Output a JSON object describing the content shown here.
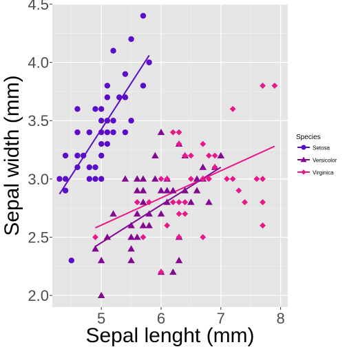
{
  "chart_data": {
    "type": "scatter",
    "xlabel": "Sepal lenght (mm)",
    "ylabel": "Sepal width (mm)",
    "xlim": [
      4.18,
      8.12
    ],
    "ylim": [
      1.9,
      4.5
    ],
    "xticks": [
      "5",
      "6",
      "7",
      "8"
    ],
    "xtick_values": [
      5,
      6,
      7,
      8
    ],
    "yticks": [
      "2.0",
      "2.5",
      "3.0",
      "3.5",
      "4.0",
      "4.5"
    ],
    "ytick_values": [
      2.0,
      2.5,
      3.0,
      3.5,
      4.0,
      4.5
    ],
    "grid": true,
    "legend": {
      "title": "Species",
      "placement": "right"
    },
    "series": [
      {
        "name": "Setosa",
        "color": "#5b0cc8",
        "marker": "circle",
        "fit": [
          [
            4.3,
            2.87
          ],
          [
            5.8,
            4.06
          ]
        ],
        "points": [
          [
            4.3,
            3.0
          ],
          [
            4.4,
            2.9
          ],
          [
            4.4,
            3.0
          ],
          [
            4.4,
            3.2
          ],
          [
            4.5,
            2.3
          ],
          [
            4.6,
            3.1
          ],
          [
            4.6,
            3.2
          ],
          [
            4.6,
            3.4
          ],
          [
            4.6,
            3.6
          ],
          [
            4.7,
            3.2
          ],
          [
            4.8,
            3.0
          ],
          [
            4.8,
            3.1
          ],
          [
            4.8,
            3.4
          ],
          [
            4.9,
            3.0
          ],
          [
            4.9,
            3.1
          ],
          [
            4.9,
            3.6
          ],
          [
            5.0,
            3.0
          ],
          [
            5.0,
            3.2
          ],
          [
            5.0,
            3.3
          ],
          [
            5.0,
            3.4
          ],
          [
            5.0,
            3.5
          ],
          [
            5.0,
            3.6
          ],
          [
            5.1,
            3.3
          ],
          [
            5.1,
            3.4
          ],
          [
            5.1,
            3.5
          ],
          [
            5.1,
            3.7
          ],
          [
            5.1,
            3.8
          ],
          [
            5.2,
            3.4
          ],
          [
            5.2,
            3.5
          ],
          [
            5.2,
            4.1
          ],
          [
            5.3,
            3.7
          ],
          [
            5.4,
            3.4
          ],
          [
            5.4,
            3.7
          ],
          [
            5.4,
            3.9
          ],
          [
            5.5,
            3.5
          ],
          [
            5.5,
            4.2
          ],
          [
            5.7,
            3.8
          ],
          [
            5.7,
            4.4
          ],
          [
            5.8,
            4.0
          ]
        ]
      },
      {
        "name": "Versicolor",
        "color": "#830891",
        "marker": "triangle",
        "fit": [
          [
            4.9,
            2.42
          ],
          [
            7.0,
            3.1
          ]
        ],
        "points": [
          [
            4.9,
            2.4
          ],
          [
            5.0,
            2.0
          ],
          [
            5.0,
            2.3
          ],
          [
            5.1,
            2.5
          ],
          [
            5.2,
            2.7
          ],
          [
            5.4,
            3.0
          ],
          [
            5.5,
            2.3
          ],
          [
            5.5,
            2.4
          ],
          [
            5.5,
            2.5
          ],
          [
            5.5,
            2.6
          ],
          [
            5.6,
            2.5
          ],
          [
            5.6,
            2.7
          ],
          [
            5.6,
            2.9
          ],
          [
            5.6,
            3.0
          ],
          [
            5.7,
            2.6
          ],
          [
            5.7,
            2.8
          ],
          [
            5.7,
            2.9
          ],
          [
            5.7,
            3.0
          ],
          [
            5.8,
            2.6
          ],
          [
            5.8,
            2.7
          ],
          [
            5.9,
            3.0
          ],
          [
            5.9,
            3.2
          ],
          [
            6.0,
            2.2
          ],
          [
            6.0,
            2.7
          ],
          [
            6.0,
            2.9
          ],
          [
            6.0,
            3.4
          ],
          [
            6.1,
            2.8
          ],
          [
            6.1,
            2.9
          ],
          [
            6.1,
            3.0
          ],
          [
            6.2,
            2.2
          ],
          [
            6.2,
            2.9
          ],
          [
            6.3,
            2.3
          ],
          [
            6.3,
            2.5
          ],
          [
            6.3,
            3.3
          ],
          [
            6.4,
            2.9
          ],
          [
            6.4,
            3.2
          ],
          [
            6.5,
            2.8
          ],
          [
            6.6,
            2.9
          ],
          [
            6.6,
            3.0
          ],
          [
            6.7,
            3.0
          ],
          [
            6.7,
            3.1
          ],
          [
            6.8,
            2.8
          ],
          [
            6.9,
            3.1
          ],
          [
            7.0,
            3.2
          ]
        ]
      },
      {
        "name": "Virginica",
        "color": "#e8178a",
        "marker": "diamond",
        "fit": [
          [
            4.9,
            2.58
          ],
          [
            7.9,
            3.28
          ]
        ],
        "points": [
          [
            4.9,
            2.5
          ],
          [
            5.6,
            2.8
          ],
          [
            5.7,
            2.5
          ],
          [
            5.8,
            2.8
          ],
          [
            6.0,
            2.2
          ],
          [
            6.0,
            3.0
          ],
          [
            6.1,
            2.6
          ],
          [
            6.1,
            3.0
          ],
          [
            6.2,
            2.8
          ],
          [
            6.2,
            3.4
          ],
          [
            6.3,
            2.5
          ],
          [
            6.3,
            2.7
          ],
          [
            6.3,
            2.8
          ],
          [
            6.3,
            3.3
          ],
          [
            6.3,
            3.4
          ],
          [
            6.4,
            2.7
          ],
          [
            6.4,
            2.8
          ],
          [
            6.4,
            3.2
          ],
          [
            6.5,
            3.0
          ],
          [
            6.5,
            3.2
          ],
          [
            6.7,
            2.5
          ],
          [
            6.7,
            3.0
          ],
          [
            6.7,
            3.3
          ],
          [
            6.8,
            3.0
          ],
          [
            6.8,
            3.2
          ],
          [
            6.9,
            3.1
          ],
          [
            6.9,
            3.2
          ],
          [
            7.1,
            3.0
          ],
          [
            7.2,
            3.0
          ],
          [
            7.2,
            3.6
          ],
          [
            7.3,
            2.9
          ],
          [
            7.4,
            2.8
          ],
          [
            7.6,
            3.0
          ],
          [
            7.7,
            2.6
          ],
          [
            7.7,
            2.8
          ],
          [
            7.7,
            3.0
          ],
          [
            7.7,
            3.8
          ],
          [
            7.9,
            3.8
          ]
        ]
      }
    ]
  }
}
